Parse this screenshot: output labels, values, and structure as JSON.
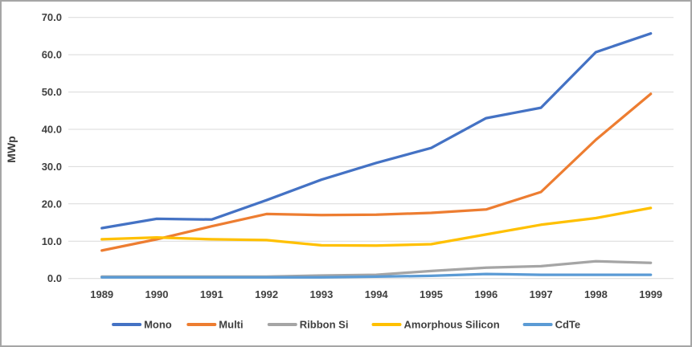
{
  "chart_data": {
    "type": "line",
    "title": "",
    "xlabel": "",
    "ylabel": "MWp",
    "ylim": [
      0,
      70
    ],
    "ytick_step": 10,
    "yticks": [
      0,
      10,
      20,
      30,
      40,
      50,
      60,
      70
    ],
    "ytick_labels": [
      "0.0",
      "10.0",
      "20.0",
      "30.0",
      "40.0",
      "50.0",
      "60.0",
      "70.0"
    ],
    "x": [
      "1989",
      "1990",
      "1991",
      "1992",
      "1993",
      "1994",
      "1995",
      "1996",
      "1997",
      "1998",
      "1999"
    ],
    "grid": true,
    "legend_position": "bottom",
    "series": [
      {
        "name": "Mono",
        "color": "#4472C4",
        "values": [
          13.5,
          16.0,
          15.8,
          21.0,
          26.5,
          31.0,
          35.0,
          43.0,
          45.8,
          60.7,
          65.7
        ]
      },
      {
        "name": "Multi",
        "color": "#ED7D31",
        "values": [
          7.5,
          10.5,
          14.0,
          17.3,
          17.0,
          17.1,
          17.6,
          18.5,
          23.2,
          37.2,
          49.5
        ]
      },
      {
        "name": "Ribbon Si",
        "color": "#A5A5A5",
        "values": [
          0.5,
          0.5,
          0.5,
          0.5,
          0.8,
          1.0,
          2.0,
          2.9,
          3.3,
          4.6,
          4.2
        ]
      },
      {
        "name": "Amorphous Silicon",
        "color": "#FFC000",
        "values": [
          10.5,
          11.0,
          10.5,
          10.3,
          8.9,
          8.8,
          9.2,
          11.8,
          14.4,
          16.2,
          18.9
        ]
      },
      {
        "name": "CdTe",
        "color": "#5B9BD5",
        "values": [
          0.3,
          0.3,
          0.3,
          0.3,
          0.3,
          0.5,
          0.7,
          1.2,
          1.0,
          1.0,
          1.0
        ]
      }
    ],
    "colors": {
      "grid": "#D9D9D9",
      "text": "#404040",
      "background": "#FFFFFF",
      "border": "#A6A6A6"
    }
  }
}
